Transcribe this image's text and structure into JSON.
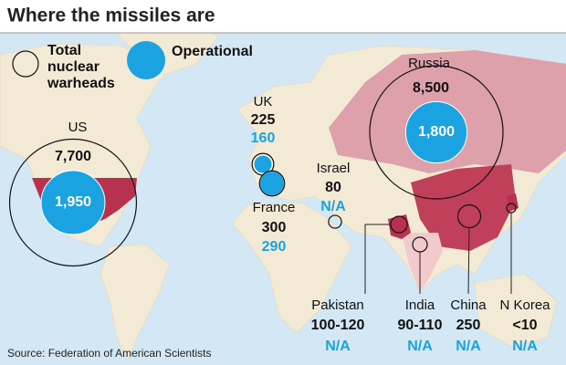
{
  "title": "Where the missiles are",
  "legend": {
    "total": [
      "Total",
      "nuclear",
      "warheads"
    ],
    "operational": "Operational"
  },
  "countries": [
    {
      "name": "US",
      "total": {
        "value": 7700,
        "label": "7,700"
      },
      "operational": {
        "value": 1950,
        "label": "1,950"
      }
    },
    {
      "name": "Russia",
      "total": {
        "value": 8500,
        "label": "8,500"
      },
      "operational": {
        "value": 1800,
        "label": "1,800"
      }
    },
    {
      "name": "UK",
      "total": 225,
      "operational": 160
    },
    {
      "name": "France",
      "total": 300,
      "operational": 290
    },
    {
      "name": "Israel",
      "total": 80,
      "operational": "N/A"
    },
    {
      "name": "Pakistan",
      "total": "100-120",
      "operational": "N/A"
    },
    {
      "name": "India",
      "total": "90-110",
      "operational": "N/A"
    },
    {
      "name": "China",
      "total": 250,
      "operational": "N/A"
    },
    {
      "name": "N Korea",
      "total": "<10",
      "operational": "N/A"
    }
  ],
  "source": "Source: Federation of American Scientists"
}
